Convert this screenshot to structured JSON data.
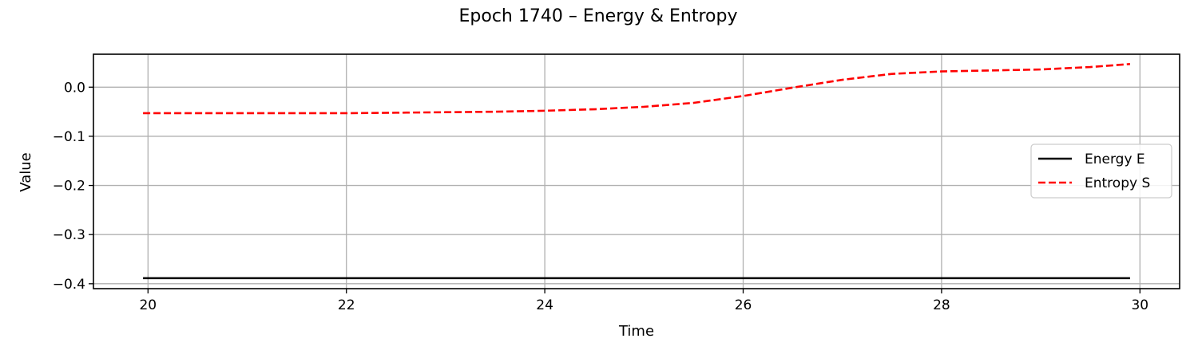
{
  "chart_data": {
    "type": "line",
    "title": "Epoch 1740 – Energy & Entropy",
    "xlabel": "Time",
    "ylabel": "Value",
    "xlim": [
      19.45,
      30.4
    ],
    "ylim": [
      -0.41,
      0.067
    ],
    "xticks": [
      20,
      22,
      24,
      26,
      28,
      30
    ],
    "xtick_labels": [
      "20",
      "22",
      "24",
      "26",
      "28",
      "30"
    ],
    "yticks": [
      0.0,
      -0.1,
      -0.2,
      -0.3,
      -0.4
    ],
    "ytick_labels": [
      "0.0",
      "−0.1",
      "−0.2",
      "−0.3",
      "−0.4"
    ],
    "grid": true,
    "legend_position": "center-right",
    "series": [
      {
        "name": "Energy E",
        "color": "#000000",
        "style": "solid",
        "x": [
          19.95,
          30.0,
          29.9
        ],
        "y": [
          -0.3887,
          -0.3887,
          -0.3887
        ]
      },
      {
        "name": "Entropy S",
        "color": "#ff0000",
        "style": "dashed",
        "x": [
          19.95,
          20.5,
          21.0,
          21.5,
          22.0,
          22.5,
          23.0,
          23.5,
          24.0,
          24.5,
          25.0,
          25.5,
          26.0,
          26.5,
          27.0,
          27.5,
          28.0,
          28.5,
          29.0,
          29.5,
          29.9
        ],
        "y": [
          -0.053,
          -0.053,
          -0.053,
          -0.053,
          -0.053,
          -0.052,
          -0.051,
          -0.05,
          -0.048,
          -0.045,
          -0.04,
          -0.032,
          -0.018,
          -0.001,
          0.015,
          0.027,
          0.032,
          0.034,
          0.036,
          0.041,
          0.047
        ]
      }
    ]
  }
}
